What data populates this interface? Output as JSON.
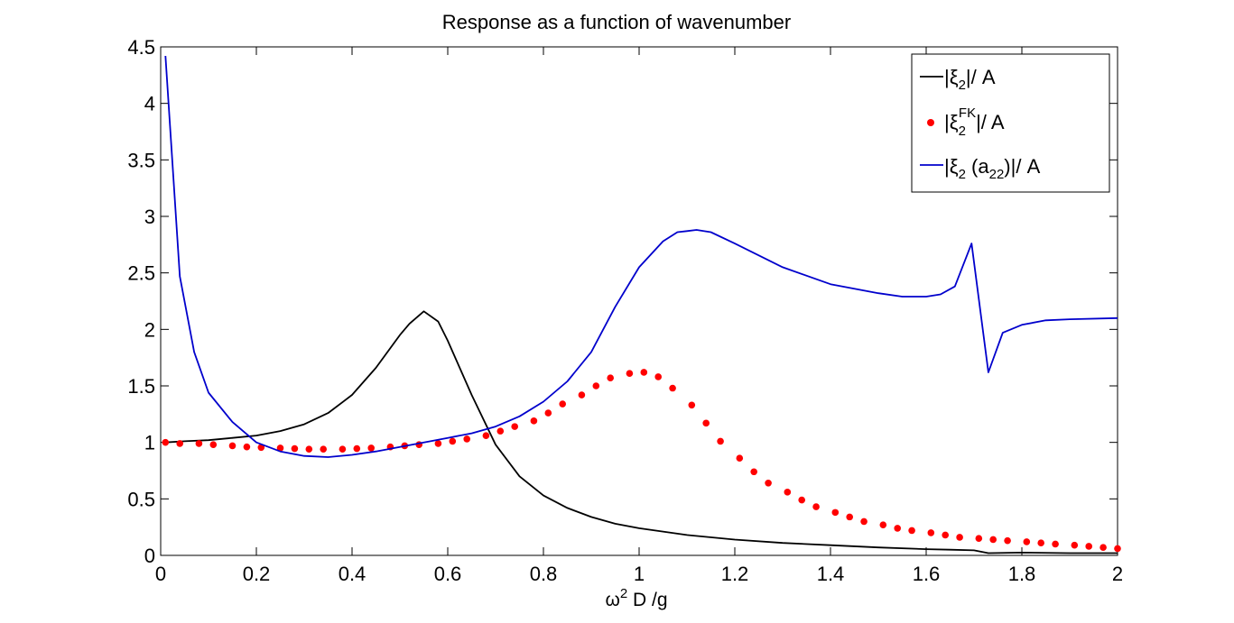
{
  "chart_data": {
    "type": "line",
    "title": "Response as a function of wavenumber",
    "xlabel": {
      "base": "ω",
      "sup": "2",
      "rest": " D /g"
    },
    "ylabel": "",
    "xlim": [
      0,
      2
    ],
    "ylim": [
      0,
      4.5
    ],
    "xticks": [
      0,
      0.2,
      0.4,
      0.6,
      0.8,
      1,
      1.2,
      1.4,
      1.6,
      1.8,
      2
    ],
    "xtick_labels": [
      "0",
      "0.2",
      "0.4",
      "0.6",
      "0.8",
      "1",
      "1.2",
      "1.4",
      "1.6",
      "1.8",
      "2"
    ],
    "yticks": [
      0,
      0.5,
      1,
      1.5,
      2,
      2.5,
      3,
      3.5,
      4,
      4.5
    ],
    "ytick_labels": [
      "0",
      "0.5",
      "1",
      "1.5",
      "2",
      "2.5",
      "3",
      "3.5",
      "4",
      "4.5"
    ],
    "grid": false,
    "legend_position": "top-right",
    "series": [
      {
        "key": "xi2",
        "legend": {
          "pre": "|ξ",
          "sub": "2",
          "sup": "",
          "mid": "",
          "sub2": "",
          "post": "|/ A"
        },
        "style": "line",
        "color": "#000000",
        "x": [
          0.01,
          0.05,
          0.1,
          0.15,
          0.2,
          0.25,
          0.3,
          0.35,
          0.4,
          0.45,
          0.5,
          0.52,
          0.55,
          0.58,
          0.6,
          0.65,
          0.7,
          0.75,
          0.8,
          0.85,
          0.9,
          0.95,
          1.0,
          1.1,
          1.2,
          1.3,
          1.4,
          1.5,
          1.6,
          1.65,
          1.7,
          1.73,
          1.8,
          1.9,
          2.0
        ],
        "y": [
          1.0,
          1.01,
          1.02,
          1.04,
          1.06,
          1.1,
          1.16,
          1.26,
          1.42,
          1.66,
          1.95,
          2.05,
          2.16,
          2.07,
          1.9,
          1.42,
          0.98,
          0.7,
          0.53,
          0.42,
          0.34,
          0.28,
          0.24,
          0.18,
          0.14,
          0.11,
          0.09,
          0.07,
          0.055,
          0.05,
          0.045,
          0.02,
          0.025,
          0.02,
          0.02
        ]
      },
      {
        "key": "xi2fk",
        "legend": {
          "pre": "|ξ",
          "sub": "2",
          "sup": "FK",
          "mid": "",
          "sub2": "",
          "post": "|/ A"
        },
        "style": "dots",
        "color": "#ff0000",
        "x": [
          0.01,
          0.04,
          0.08,
          0.11,
          0.15,
          0.18,
          0.21,
          0.25,
          0.28,
          0.31,
          0.34,
          0.38,
          0.41,
          0.44,
          0.48,
          0.51,
          0.54,
          0.58,
          0.61,
          0.64,
          0.68,
          0.71,
          0.74,
          0.78,
          0.81,
          0.84,
          0.88,
          0.91,
          0.94,
          0.98,
          1.01,
          1.04,
          1.07,
          1.11,
          1.14,
          1.17,
          1.21,
          1.24,
          1.27,
          1.31,
          1.34,
          1.37,
          1.41,
          1.44,
          1.47,
          1.51,
          1.54,
          1.57,
          1.61,
          1.64,
          1.67,
          1.71,
          1.74,
          1.77,
          1.81,
          1.84,
          1.87,
          1.91,
          1.94,
          1.97,
          2.0
        ],
        "y": [
          1.0,
          0.99,
          0.99,
          0.98,
          0.97,
          0.96,
          0.955,
          0.95,
          0.945,
          0.94,
          0.94,
          0.94,
          0.945,
          0.95,
          0.96,
          0.97,
          0.98,
          0.99,
          1.01,
          1.03,
          1.06,
          1.1,
          1.14,
          1.19,
          1.26,
          1.34,
          1.42,
          1.5,
          1.57,
          1.61,
          1.62,
          1.58,
          1.48,
          1.33,
          1.17,
          1.01,
          0.86,
          0.74,
          0.64,
          0.56,
          0.49,
          0.43,
          0.38,
          0.34,
          0.3,
          0.27,
          0.24,
          0.22,
          0.2,
          0.18,
          0.16,
          0.15,
          0.14,
          0.13,
          0.12,
          0.11,
          0.1,
          0.09,
          0.08,
          0.07,
          0.06
        ]
      },
      {
        "key": "xi2a22",
        "legend": {
          "pre": "|ξ",
          "sub": "2",
          "sup": "",
          "mid": " (a",
          "sub2": "22",
          "post": ")|/ A"
        },
        "style": "line",
        "color": "#0000cc",
        "x": [
          0.01,
          0.04,
          0.07,
          0.1,
          0.15,
          0.2,
          0.25,
          0.3,
          0.35,
          0.4,
          0.45,
          0.5,
          0.55,
          0.6,
          0.65,
          0.7,
          0.75,
          0.8,
          0.85,
          0.9,
          0.95,
          1.0,
          1.05,
          1.08,
          1.1,
          1.12,
          1.15,
          1.2,
          1.3,
          1.4,
          1.5,
          1.55,
          1.6,
          1.63,
          1.66,
          1.695,
          1.73,
          1.76,
          1.8,
          1.85,
          1.9,
          2.0
        ],
        "y": [
          4.42,
          2.47,
          1.8,
          1.44,
          1.18,
          1.0,
          0.92,
          0.88,
          0.87,
          0.89,
          0.92,
          0.96,
          1.0,
          1.04,
          1.08,
          1.14,
          1.23,
          1.36,
          1.54,
          1.8,
          2.2,
          2.55,
          2.78,
          2.86,
          2.87,
          2.88,
          2.86,
          2.76,
          2.55,
          2.4,
          2.32,
          2.29,
          2.29,
          2.31,
          2.38,
          2.76,
          1.62,
          1.97,
          2.04,
          2.08,
          2.09,
          2.1
        ]
      }
    ]
  }
}
